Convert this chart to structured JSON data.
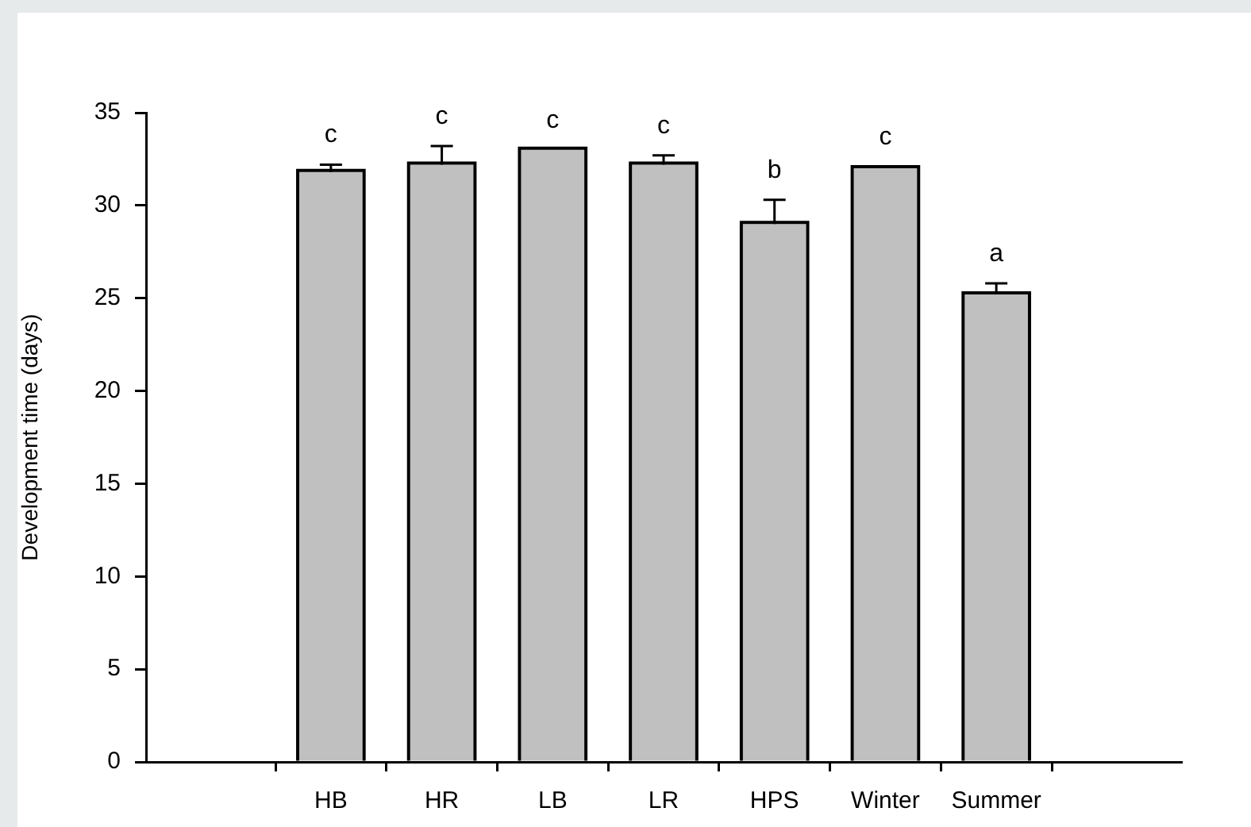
{
  "chart_data": {
    "type": "bar",
    "ylabel": "Development time (days)",
    "categories": [
      "HB",
      "HR",
      "LB",
      "LR",
      "HPS",
      "Winter",
      "Summer"
    ],
    "values": [
      31.8,
      32.2,
      33.0,
      32.2,
      29.0,
      32.0,
      25.2
    ],
    "errors": [
      [
        31.8,
        32.2
      ],
      [
        32.2,
        33.2
      ],
      null,
      [
        32.2,
        32.7
      ],
      [
        29.0,
        30.3
      ],
      [
        32.0,
        32.1
      ],
      [
        25.2,
        25.8
      ]
    ],
    "color": "#c0c0c0",
    "ylim": [
      0,
      35
    ],
    "yticks": [
      0,
      5,
      10,
      15,
      20,
      25,
      30,
      35
    ],
    "annotations": [
      {
        "text": "c",
        "x": "HB",
        "y": 31.8
      },
      {
        "text": "c",
        "x": "HR",
        "y": 32.2
      },
      {
        "text": "c",
        "x": "LB",
        "y": 33.0
      },
      {
        "text": "c",
        "x": "LR",
        "y": 32.2
      },
      {
        "text": "b",
        "x": "HPS",
        "y": 29.0
      },
      {
        "text": "c",
        "x": "Winter",
        "y": 32.0
      },
      {
        "text": "a",
        "x": "Summer",
        "y": 25.2
      }
    ]
  }
}
